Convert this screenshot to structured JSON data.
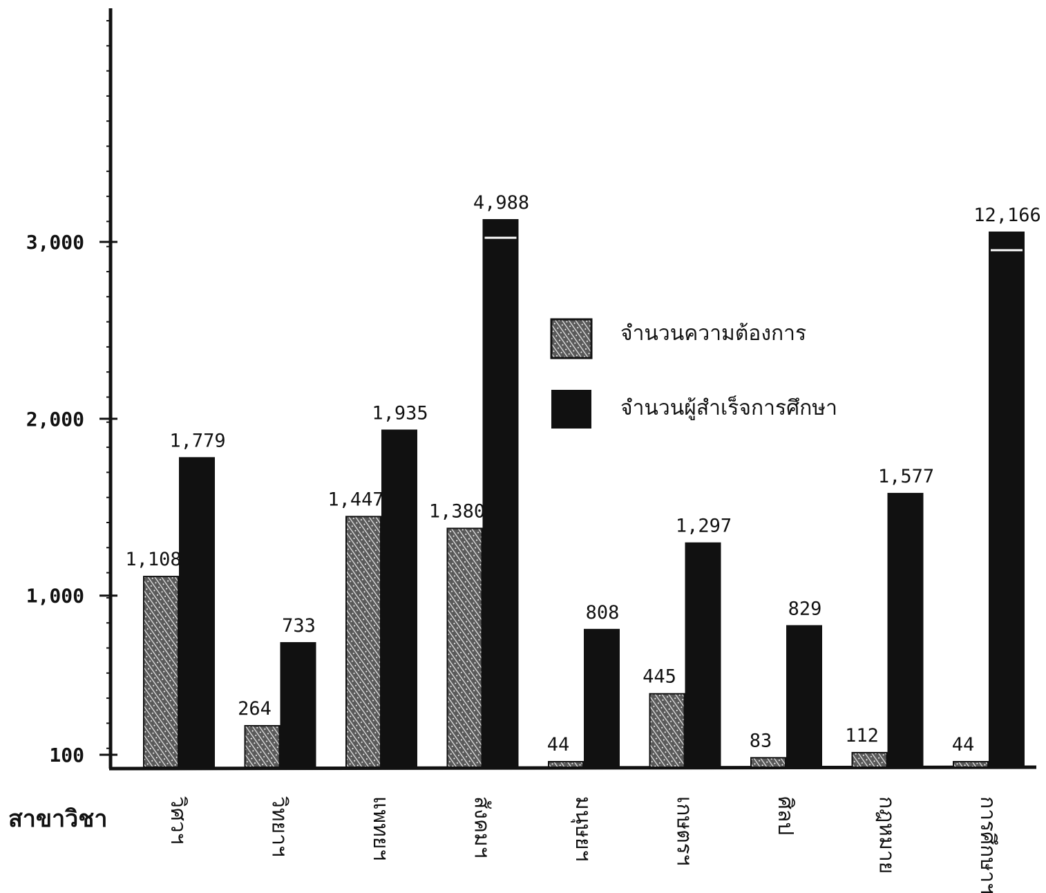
{
  "chart_data": {
    "type": "bar",
    "title": "",
    "ylabel": "",
    "xlabel": "สาขาวิชา",
    "scale_note": "Axis broken: ticks 100, 1,000, 2,000, 3,000; bars above 3,000 (4,988 and 12,166) are truncated at the top of the plot.",
    "y_ticks": [
      {
        "value": 100,
        "label": "100"
      },
      {
        "value": 1000,
        "label": "1,000"
      },
      {
        "value": 2000,
        "label": "2,000"
      },
      {
        "value": 3000,
        "label": "3,000"
      }
    ],
    "categories": [
      "วิศวฯ",
      "วิทยาฯ",
      "แพทยฯ",
      "สังคมฯ",
      "มนุษยฯ",
      "เกษตรฯ",
      "ศิลป",
      "กฎหมาย",
      "การศึกษาฯ"
    ],
    "series": [
      {
        "name": "จำนวนความต้องการ",
        "pattern": "hatched",
        "values": [
          1108,
          264,
          1447,
          1380,
          44,
          445,
          83,
          112,
          44
        ],
        "labels": [
          "1,108",
          "264",
          "1,447",
          "1,380",
          "44",
          "445",
          "83",
          "112",
          "44"
        ]
      },
      {
        "name": "จำนวนผู้สำเร็จการศึกษา",
        "pattern": "solid",
        "values": [
          1779,
          733,
          1935,
          4988,
          808,
          1297,
          829,
          1577,
          12166
        ],
        "labels": [
          "1,779",
          "733",
          "1,935",
          "4,988",
          "808",
          "1,297",
          "829",
          "1,577",
          "12,166"
        ]
      }
    ],
    "legend_position": "center-right",
    "colors": {
      "ink": "#111111",
      "hatch_bg": "#5a5a5a",
      "background": "#ffffff"
    }
  }
}
